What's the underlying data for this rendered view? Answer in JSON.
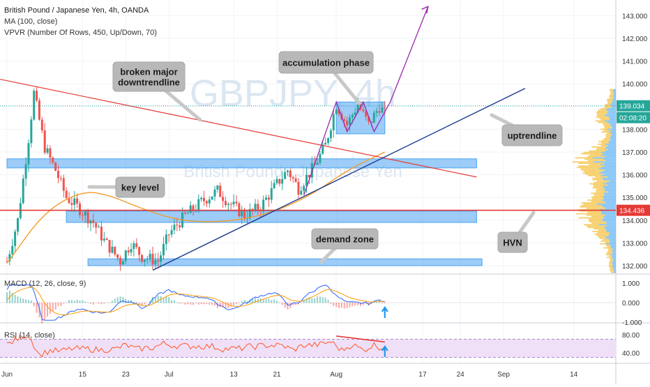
{
  "header": {
    "title": "British Pound / Japanese Yen, 4h, OANDA",
    "indicator1": "MA (100, close)",
    "indicator2": "VPVR (Number Of Rows, 450, Up/Down, 70)"
  },
  "watermark": {
    "symbol": "GBPJPY, 4h",
    "name": "British Pound / Japanese Yen"
  },
  "colors": {
    "up": "#26a69a",
    "down": "#ef5350",
    "ma": "#f59b27",
    "zone": "#4aa3f0",
    "red_line": "#e53935",
    "blue_trend": "#1a3a8f",
    "purple": "#9c27b0",
    "vpvr_up": "#f5c242",
    "vpvr_down": "#64b5f6",
    "macd_line": "#2962ff",
    "signal_line": "#ff9800",
    "rsi_line": "#ff5722",
    "rsi_band": "#efe0f8"
  },
  "annotations": {
    "broken_trendline": "broken major\ndowntrendline",
    "accumulation": "accumulation phase",
    "uptrendline": "uptrendline",
    "key_level": "key level",
    "demand_zone": "demand zone",
    "hvn": "HVN"
  },
  "price_badges": {
    "last": "139.034",
    "countdown": "02:08:20",
    "level": "134.436"
  },
  "macd_label": "MACD (12, 26, close, 9)",
  "rsi_label": "RSI (14, close)",
  "chart_data": [
    {
      "type": "candlestick",
      "title": "British Pound / Japanese Yen, 4h, OANDA",
      "y_ticks": [
        "132.000",
        "133.000",
        "134.000",
        "135.000",
        "136.000",
        "137.000",
        "138.000",
        "139.000",
        "140.000",
        "141.000",
        "142.000",
        "143.000"
      ],
      "ylim": [
        131.6,
        143.6
      ],
      "x_ticks": [
        "Jun",
        "15",
        "23",
        "Jul",
        "13",
        "21",
        "Aug",
        "17",
        "24",
        "Sep",
        "14"
      ],
      "price_path": [
        [
          "Jun",
          132.2
        ],
        [
          "Jun 3",
          134.0
        ],
        [
          "Jun 5",
          137.6
        ],
        [
          "Jun 6",
          139.6
        ],
        [
          "Jun 8",
          137.2
        ],
        [
          "Jun 10",
          136.2
        ],
        [
          "Jun 12",
          135.0
        ],
        [
          "Jun 14",
          134.6
        ],
        [
          "Jun 17",
          133.9
        ],
        [
          "Jun 19",
          133.1
        ],
        [
          "Jun 22",
          132.2
        ],
        [
          "Jun 24",
          133.0
        ],
        [
          "Jun 26",
          132.4
        ],
        [
          "Jun 29",
          132.2
        ],
        [
          "Jul 1",
          133.4
        ],
        [
          "Jul 4",
          134.2
        ],
        [
          "Jul 7",
          134.8
        ],
        [
          "Jul 10",
          135.3
        ],
        [
          "Jul 12",
          134.8
        ],
        [
          "Jul 15",
          134.2
        ],
        [
          "Jul 18",
          134.6
        ],
        [
          "Jul 21",
          135.6
        ],
        [
          "Jul 23",
          136.2
        ],
        [
          "Jul 25",
          135.4
        ],
        [
          "Jul 28",
          136.4
        ],
        [
          "Jul 30",
          137.3
        ],
        [
          "Aug 1",
          139.1
        ],
        [
          "Aug 3",
          138.2
        ],
        [
          "Aug 5",
          139.1
        ],
        [
          "Aug 7",
          138.2
        ],
        [
          "Aug 9",
          139.0
        ],
        [
          "Aug 10",
          138.7
        ]
      ],
      "ma_100_path": [
        [
          "Jun",
          132.1
        ],
        [
          "Jun 8",
          134.4
        ],
        [
          "Jun 15",
          135.3
        ],
        [
          "Jun 20",
          135.1
        ],
        [
          "Jun 25",
          134.6
        ],
        [
          "Jul 1",
          134.1
        ],
        [
          "Jul 7",
          133.9
        ],
        [
          "Jul 14",
          134.0
        ],
        [
          "Jul 21",
          134.4
        ],
        [
          "Jul 28",
          135.2
        ],
        [
          "Aug 3",
          136.2
        ],
        [
          "Aug 10",
          137.0
        ]
      ],
      "zones": [
        {
          "label": "key level",
          "from": 136.3,
          "to": 136.7,
          "start": "Jun",
          "end": "Aug 27"
        },
        {
          "label": "key level",
          "from": 133.9,
          "to": 134.4,
          "start": "Jun 12",
          "end": "Aug 27"
        },
        {
          "label": "demand zone",
          "from": 132.0,
          "to": 132.3,
          "start": "Jun 16",
          "end": "Aug 28"
        },
        {
          "label": "accumulation phase",
          "from": 137.8,
          "to": 139.2,
          "start": "Aug 1",
          "end": "Aug 10"
        }
      ],
      "horizontal_line": 134.436,
      "last_price": 139.034,
      "countdown": "02:08:20",
      "vpvr_poc": 134.436,
      "macd_ticks": [
        "1.000",
        "0.000",
        "-1.000"
      ],
      "macd_ylim": [
        -1.0,
        1.2
      ],
      "rsi_ticks": [
        "80.00",
        "40.00"
      ],
      "rsi_ylim": [
        20,
        85
      ],
      "rsi_band": [
        30,
        70
      ]
    }
  ]
}
